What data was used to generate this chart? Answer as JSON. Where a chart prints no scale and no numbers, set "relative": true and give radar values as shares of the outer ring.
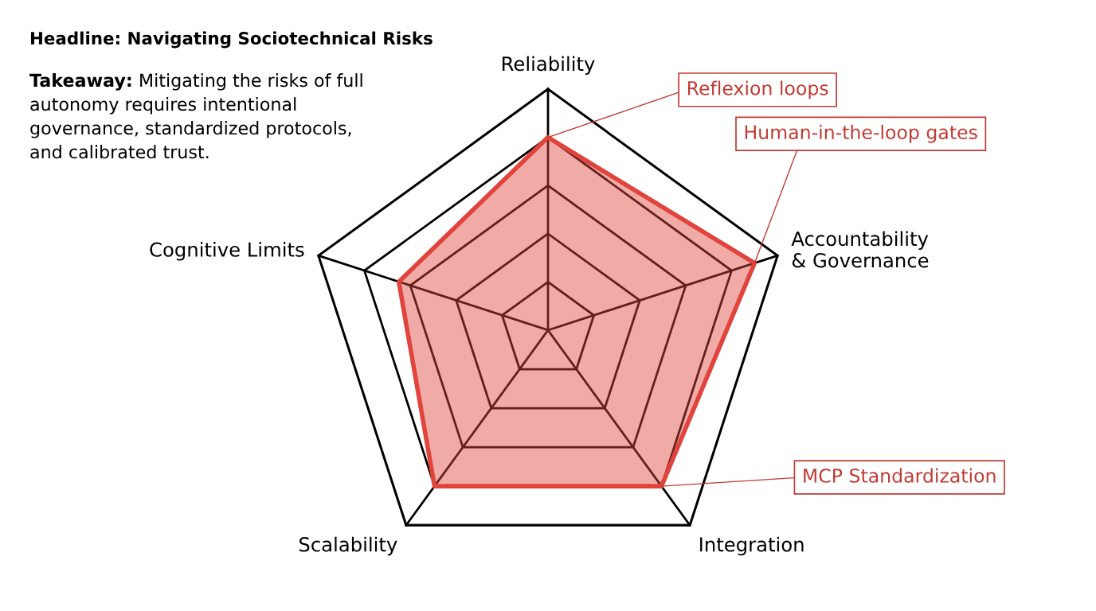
{
  "chart_data": {
    "type": "radar",
    "title": "Headline: Navigating Sociotechnical Risks",
    "subtitle": "Takeaway: Mitigating the risks of full\nautonomy requires intentional\ngovernance, standardized protocols,\nand calibrated trust.",
    "categories": [
      "Reliability",
      "Accountability\n& Governance",
      "Integration",
      "Scalability",
      "Cognitive Limits"
    ],
    "relative": true,
    "grid": true,
    "series": [
      {
        "color": "#e0443c",
        "values": [
          0.8,
          0.9,
          0.8,
          0.8,
          0.65
        ]
      }
    ],
    "annotations": [
      {
        "text": "Reflexion loops",
        "x": "Reliability"
      },
      {
        "text": "Human-in-the-loop gates",
        "x": "Accountability\n& Governance"
      },
      {
        "text": "MCP Standardization",
        "x": "Integration"
      }
    ]
  }
}
